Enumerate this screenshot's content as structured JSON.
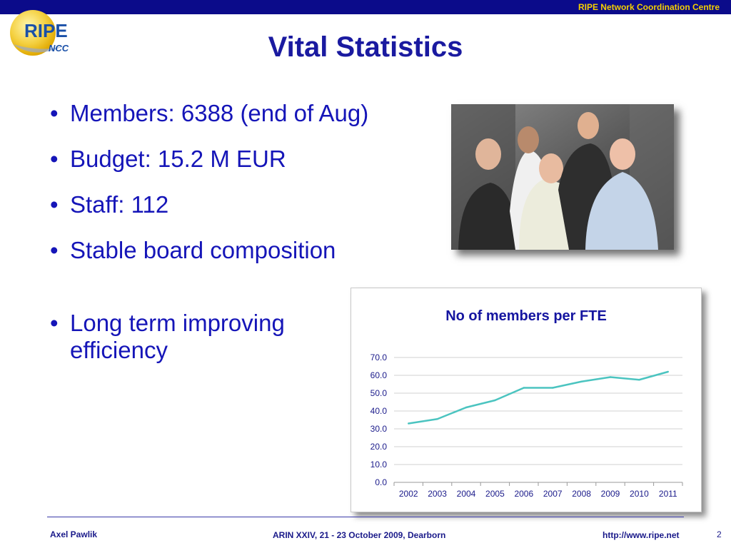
{
  "header": {
    "org": "RIPE Network Coordination Centre"
  },
  "logo": {
    "text_main": "RIPE",
    "text_sub": "NCC"
  },
  "slide": {
    "title": "Vital Statistics",
    "bullets": [
      "Members: 6388 (end of Aug)",
      "Budget: 15.2 M EUR",
      "Staff: 112",
      "Stable board composition",
      "Long term improving efficiency"
    ]
  },
  "chart_data": {
    "type": "line",
    "title": "No of members per FTE",
    "x": [
      "2002",
      "2003",
      "2004",
      "2005",
      "2006",
      "2007",
      "2008",
      "2009",
      "2010",
      "2011"
    ],
    "y_ticks": [
      "0.0",
      "10.0",
      "20.0",
      "30.0",
      "40.0",
      "50.0",
      "60.0",
      "70.0"
    ],
    "series": [
      {
        "values": [
          33,
          35.5,
          42,
          46,
          53,
          53,
          56.5,
          59,
          57.5,
          62
        ],
        "color": "#4bc4c0"
      }
    ],
    "ylim": [
      0,
      70
    ],
    "grid": true,
    "legend": "none"
  },
  "footer": {
    "author": "Axel Pawlik",
    "event": "ARIN XXIV, 21 - 23 October 2009, Dearborn",
    "url": "http://www.ripe.net",
    "page": "2"
  }
}
